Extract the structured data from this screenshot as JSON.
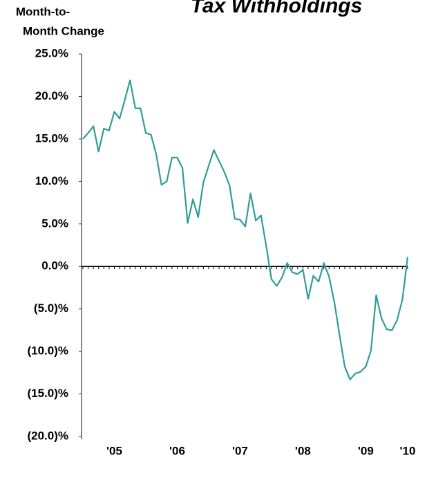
{
  "chart_data": {
    "type": "line",
    "title": "Tax Withholdings",
    "ylabel": [
      "Month-to-",
      "Month Change"
    ],
    "categories": [
      null,
      null,
      null,
      null,
      null,
      null,
      "'05",
      null,
      null,
      null,
      null,
      null,
      null,
      null,
      null,
      null,
      null,
      null,
      "'06",
      null,
      null,
      null,
      null,
      null,
      null,
      null,
      null,
      null,
      null,
      null,
      "'07",
      null,
      null,
      null,
      null,
      null,
      null,
      null,
      null,
      null,
      null,
      null,
      "'08",
      null,
      null,
      null,
      null,
      null,
      null,
      null,
      null,
      null,
      null,
      null,
      "'09",
      null,
      null,
      null,
      null,
      null,
      null,
      null,
      "'10"
    ],
    "series": [
      {
        "color": "#2e9c9a",
        "values": [
          15.0,
          15.7,
          16.5,
          13.5,
          16.2,
          16.0,
          18.2,
          17.4,
          19.6,
          21.9,
          18.6,
          18.6,
          15.7,
          15.5,
          13.2,
          9.6,
          10.0,
          12.8,
          12.8,
          11.6,
          5.1,
          7.9,
          5.8,
          9.9,
          11.8,
          13.7,
          12.4,
          11.1,
          9.5,
          5.6,
          5.5,
          4.7,
          8.6,
          5.4,
          6.0,
          2.4,
          -1.5,
          -2.3,
          -1.3,
          0.4,
          -0.7,
          -0.9,
          -0.4,
          -3.8,
          -1.1,
          -1.8,
          0.4,
          -1.2,
          -4.2,
          -8.1,
          -11.8,
          -13.3,
          -12.6,
          -12.4,
          -11.8,
          -9.9,
          -3.4,
          -6.1,
          -7.4,
          -7.5,
          -6.3,
          -3.9,
          1.1
        ]
      }
    ],
    "ylim": [
      -20,
      25
    ],
    "yticks": [
      {
        "value": 25,
        "label": "25.0%"
      },
      {
        "value": 20,
        "label": "20.0%"
      },
      {
        "value": 15,
        "label": "15.0%"
      },
      {
        "value": 10,
        "label": "10.0%"
      },
      {
        "value": 5,
        "label": "5.0%"
      },
      {
        "value": 0,
        "label": "0.0%"
      },
      {
        "value": -5,
        "label": "(5.0)%"
      },
      {
        "value": -10,
        "label": "(10.0)%"
      },
      {
        "value": -15,
        "label": "(15.0)%"
      },
      {
        "value": -20,
        "label": "(20.0)%"
      }
    ],
    "grid": false
  }
}
